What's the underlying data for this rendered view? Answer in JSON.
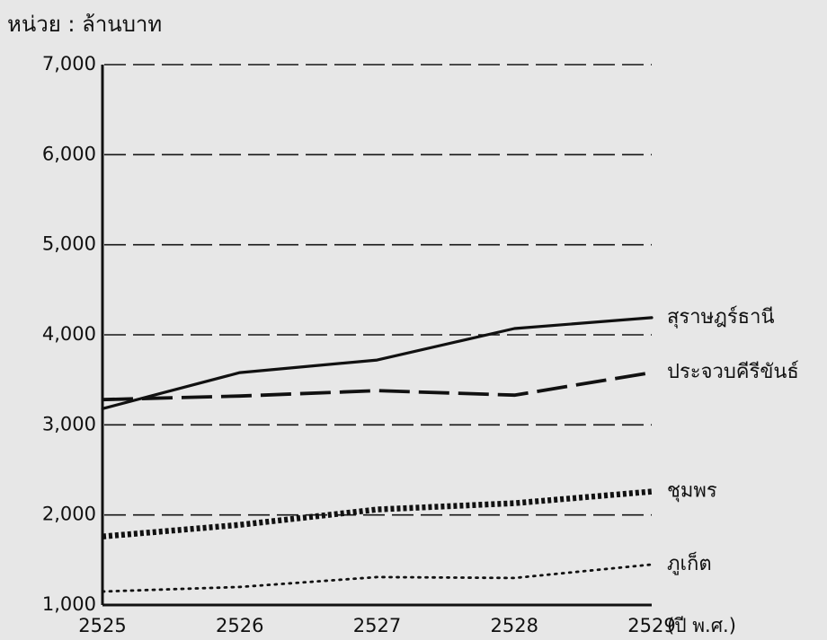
{
  "chart_data": {
    "type": "line",
    "title": "",
    "unit_label": "หน่วย : ล้านบาท",
    "xlabel": "(ปี พ.ศ.)",
    "ylabel": "",
    "categories": [
      "2525",
      "2526",
      "2527",
      "2528",
      "2529"
    ],
    "x": [
      2525,
      2526,
      2527,
      2528,
      2529
    ],
    "ylim": [
      1000,
      7000
    ],
    "yticks": [
      1000,
      2000,
      3000,
      4000,
      5000,
      6000,
      7000
    ],
    "ytick_labels": [
      "1,000",
      "2,000",
      "3,000",
      "4,000",
      "5,000",
      "6,000",
      "7,000"
    ],
    "grid": true,
    "series": [
      {
        "name": "สุราษฎร์ธานี",
        "style": "solid",
        "values": [
          3180,
          3580,
          3720,
          4070,
          4190
        ]
      },
      {
        "name": "ประจวบคีรีขันธ์",
        "style": "long-dash",
        "values": [
          3280,
          3320,
          3380,
          3330,
          3580
        ]
      },
      {
        "name": "ชุมพร",
        "style": "thick-dotted",
        "values": [
          1760,
          1890,
          2060,
          2130,
          2260
        ]
      },
      {
        "name": "ภูเก็ต",
        "style": "fine-dotted",
        "values": [
          1150,
          1200,
          1310,
          1300,
          1450
        ]
      }
    ],
    "colors": {
      "background": "#e7e7e7",
      "ink": "#111111"
    }
  }
}
